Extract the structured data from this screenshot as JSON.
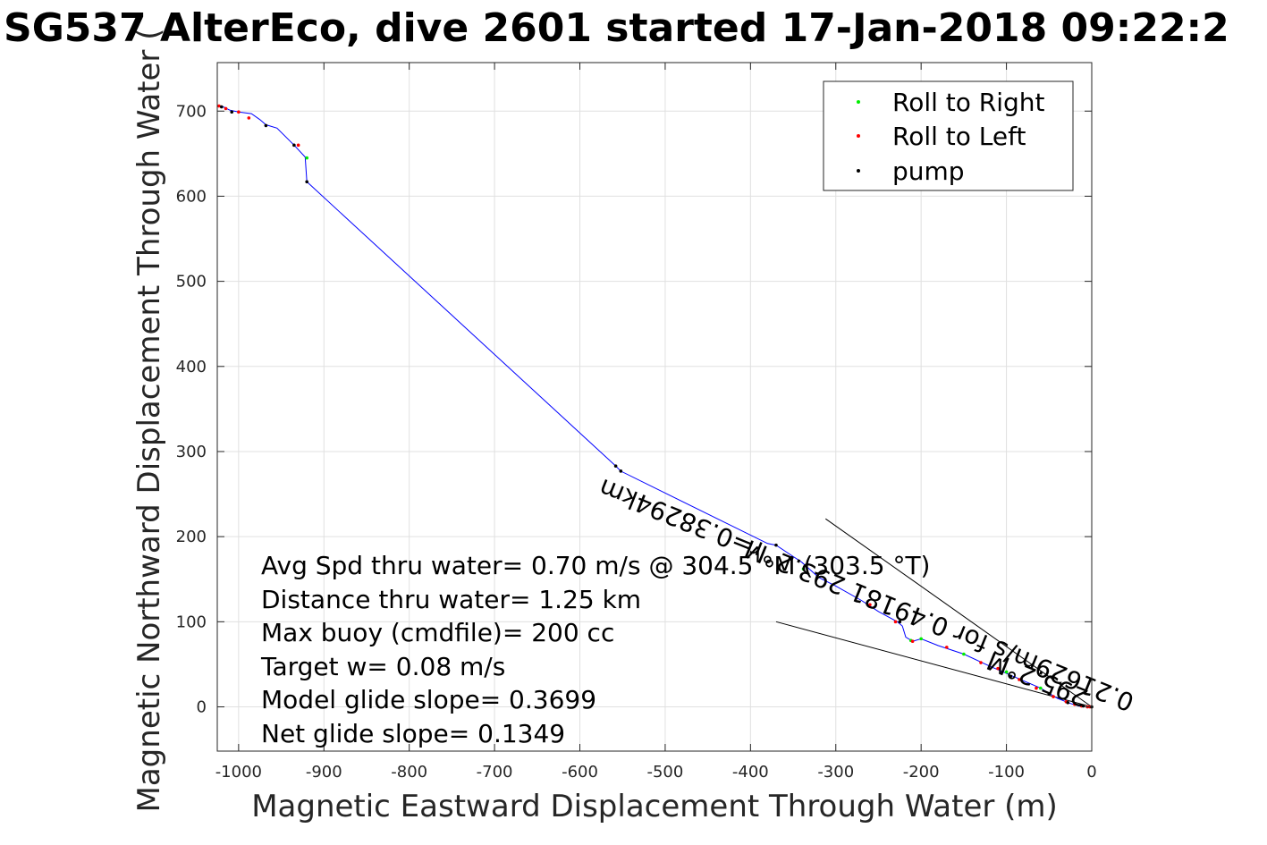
{
  "chart_data": {
    "type": "line",
    "title": "SG537 AlterEco, dive 2601 started 17-Jan-2018 09:22:2",
    "xlabel": "Magnetic Eastward Displacement Through Water (m)",
    "ylabel": "Magnetic Northward Displacement Through Water (",
    "xlim": [
      -1025,
      0
    ],
    "ylim": [
      -52,
      757
    ],
    "xticks": [
      -1000,
      -900,
      -800,
      -700,
      -600,
      -500,
      -400,
      -300,
      -200,
      -100,
      0
    ],
    "yticks": [
      0,
      100,
      200,
      300,
      400,
      500,
      600,
      700
    ],
    "grid": true,
    "legend_position": "top-right",
    "legend": [
      {
        "label": "Roll to Right",
        "color": "#00ee00"
      },
      {
        "label": "Roll to Left",
        "color": "#ff0000"
      },
      {
        "label": "pump",
        "color": "#000000"
      }
    ],
    "track_color": "#0000ff",
    "track": [
      [
        -1025,
        707
      ],
      [
        -1018,
        705
      ],
      [
        -1010,
        701
      ],
      [
        -1000,
        699
      ],
      [
        -985,
        697
      ],
      [
        -975,
        690
      ],
      [
        -968,
        684
      ],
      [
        -955,
        680
      ],
      [
        -935,
        660
      ],
      [
        -922,
        646
      ],
      [
        -920,
        617
      ],
      [
        -558,
        283
      ],
      [
        -552,
        277
      ],
      [
        -380,
        192
      ],
      [
        -370,
        190
      ],
      [
        -340,
        170
      ],
      [
        -320,
        152
      ],
      [
        -300,
        142
      ],
      [
        -270,
        125
      ],
      [
        -250,
        112
      ],
      [
        -228,
        100
      ],
      [
        -222,
        95
      ],
      [
        -218,
        82
      ],
      [
        -210,
        77
      ],
      [
        -200,
        80
      ],
      [
        -180,
        72
      ],
      [
        -150,
        62
      ],
      [
        -120,
        48
      ],
      [
        -90,
        35
      ],
      [
        -60,
        22
      ],
      [
        -40,
        10
      ],
      [
        -25,
        4
      ],
      [
        -15,
        1
      ],
      [
        -8,
        0
      ],
      [
        0,
        0
      ]
    ],
    "roll_right_points": [
      [
        -920,
        645
      ],
      [
        -338,
        162
      ],
      [
        -212,
        78
      ],
      [
        -200,
        80
      ],
      [
        -150,
        62
      ],
      [
        -100,
        41
      ],
      [
        -60,
        22
      ]
    ],
    "roll_left_points": [
      [
        -1023,
        706
      ],
      [
        -1015,
        703
      ],
      [
        -1000,
        699
      ],
      [
        -988,
        692
      ],
      [
        -930,
        660
      ],
      [
        -260,
        120
      ],
      [
        -230,
        100
      ],
      [
        -210,
        77
      ],
      [
        -170,
        70
      ],
      [
        -130,
        52
      ],
      [
        -110,
        45
      ],
      [
        -85,
        32
      ],
      [
        -65,
        22
      ],
      [
        -45,
        12
      ],
      [
        -30,
        6
      ],
      [
        -20,
        3
      ],
      [
        -12,
        1
      ],
      [
        -5,
        0
      ],
      [
        -2,
        0
      ]
    ],
    "pump_points": [
      [
        -1020,
        705
      ],
      [
        -1008,
        699
      ],
      [
        -968,
        683
      ],
      [
        -935,
        660
      ],
      [
        -920,
        617
      ],
      [
        -558,
        283
      ],
      [
        -552,
        277
      ],
      [
        -370,
        190
      ],
      [
        -225,
        100
      ],
      [
        -95,
        36
      ],
      [
        -50,
        15
      ],
      [
        -28,
        5
      ],
      [
        -10,
        1
      ],
      [
        0,
        0
      ]
    ],
    "wedge_lines": [
      [
        [
          -312,
          221
        ],
        [
          0,
          0
        ]
      ],
      [
        [
          -370,
          100
        ],
        [
          0,
          0
        ]
      ]
    ],
    "rotated_labels": [
      {
        "text": "r=0.38294km",
        "x": -478,
        "y": 230,
        "angle": 202
      },
      {
        "text": "0.21629m/s for 0.49181 293.2°M",
        "x": -175,
        "y": 105,
        "angle": 202
      },
      {
        "text": "295.2°M",
        "x": -60,
        "y": 42,
        "angle": 202
      }
    ],
    "annotations": [
      "Avg Spd thru water=  0.70 m/s @ 304.5 °M (303.5 °T)",
      "Distance thru water=  1.25 km",
      "Max buoy (cmdfile)= 200 cc",
      "Target w= 0.08 m/s",
      "Model glide slope= 0.3699",
      "Net glide slope= 0.1349"
    ]
  }
}
